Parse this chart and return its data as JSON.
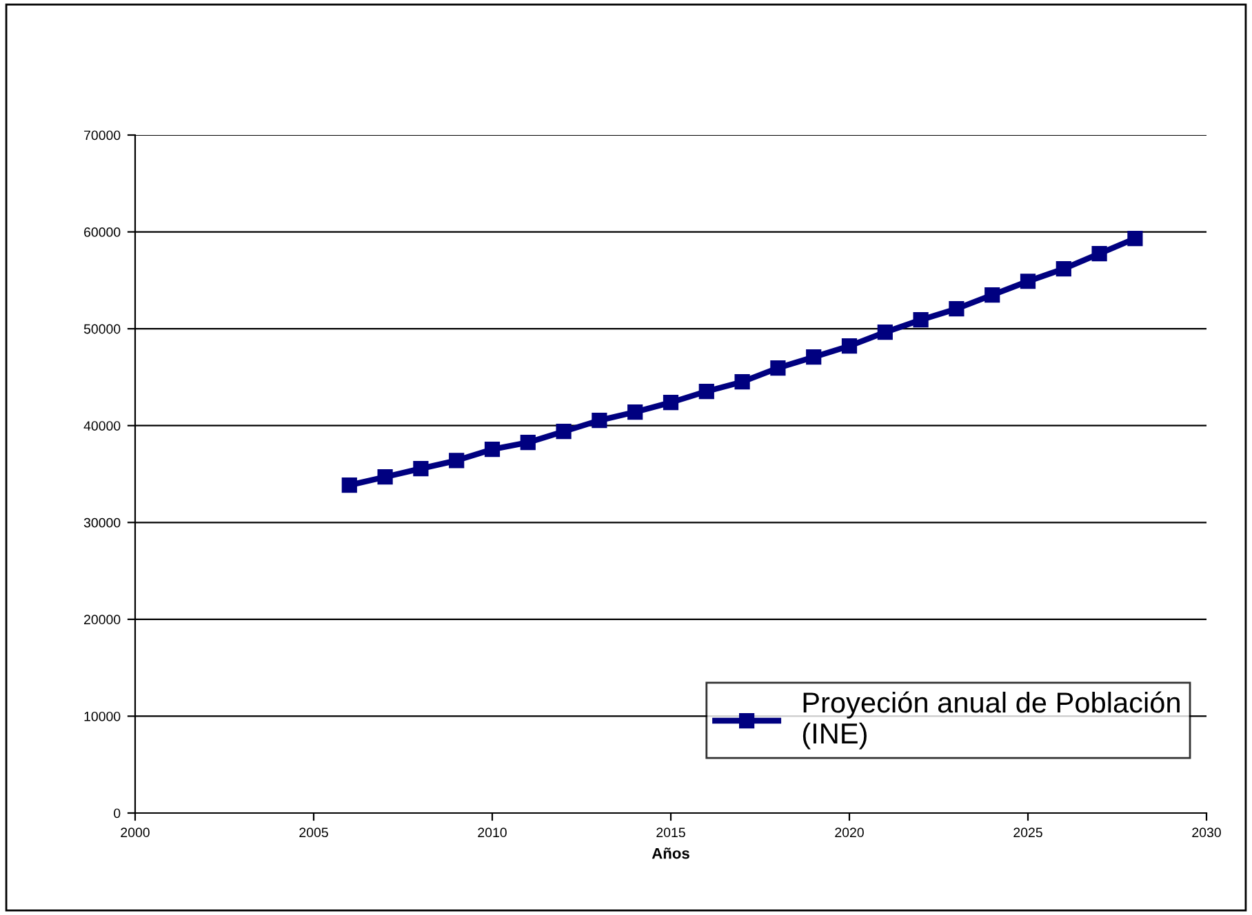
{
  "chart_data": {
    "type": "line",
    "xlabel": "Años",
    "x": [
      2006,
      2007,
      2008,
      2009,
      2010,
      2011,
      2012,
      2013,
      2014,
      2015,
      2016,
      2017,
      2018,
      2019,
      2020,
      2021,
      2022,
      2023,
      2024,
      2025,
      2026,
      2027,
      2028
    ],
    "series": [
      {
        "name": "Proyeción anual de Población (INE)",
        "color": "#000080",
        "values": [
          33850,
          34700,
          35560,
          36400,
          37550,
          38260,
          39400,
          40540,
          41400,
          42390,
          43530,
          44520,
          45950,
          47080,
          48220,
          49640,
          50920,
          52060,
          53490,
          54900,
          56190,
          57750,
          59320
        ]
      }
    ],
    "xlim": [
      2000,
      2030
    ],
    "xticks": [
      2000,
      2005,
      2010,
      2015,
      2020,
      2025,
      2030
    ],
    "ylim": [
      0,
      70000
    ],
    "yticks": [
      0,
      10000,
      20000,
      30000,
      40000,
      50000,
      60000,
      70000
    ],
    "grid": "y",
    "legend": "bottom right",
    "marker": "square",
    "line_style": "solid"
  }
}
